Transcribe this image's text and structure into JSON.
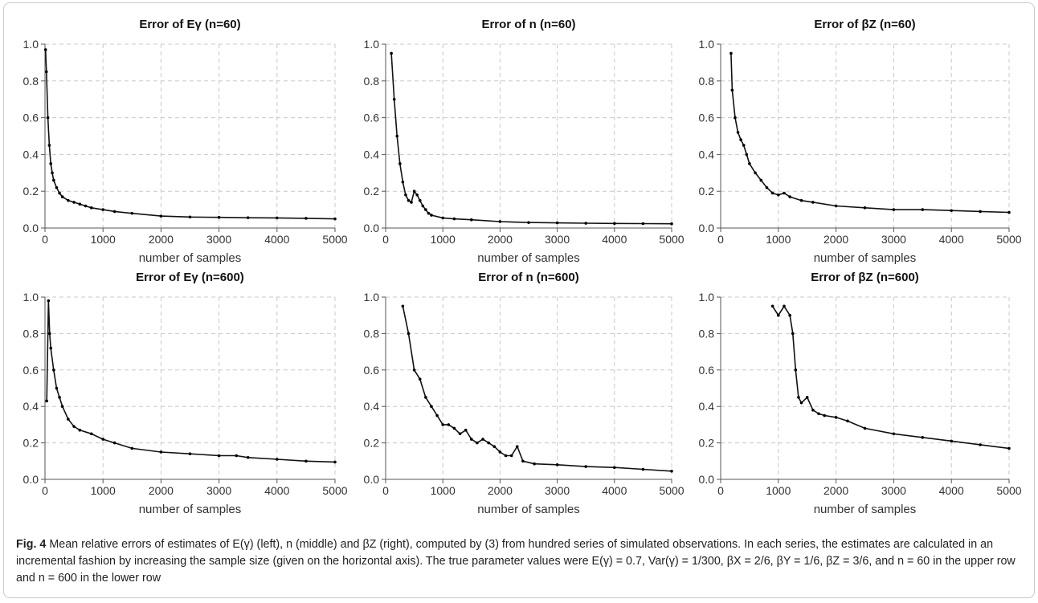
{
  "figure_label": "Fig. 4",
  "caption": "Mean relative errors of estimates of E(γ) (left), n (middle) and βZ (right), computed by (3) from hundred series of simulated observations. In each series, the estimates are calculated in an incremental fashion by increasing the sample size (given on the horizontal axis). The true parameter values were E(γ) = 0.7, Var(γ) = 1/300, βX = 2/6, βY = 1/6, βZ = 3/6, and n = 60 in the upper row and n = 600 in the lower row",
  "chart_data": [
    {
      "type": "scatter",
      "title": "Error of Eγ (n=60)",
      "xlabel": "number of samples",
      "ylabel": "",
      "xlim": [
        0,
        5000
      ],
      "ylim": [
        0,
        1
      ],
      "xticks": [
        "0",
        "1000",
        "2000",
        "3000",
        "4000",
        "5000"
      ],
      "yticks": [
        "0.0",
        "0.2",
        "0.4",
        "0.6",
        "0.8",
        "1.0"
      ],
      "grid": true,
      "x": [
        10,
        25,
        50,
        75,
        100,
        125,
        150,
        200,
        250,
        300,
        400,
        500,
        600,
        700,
        800,
        1000,
        1200,
        1500,
        2000,
        2500,
        3000,
        3500,
        4000,
        4500,
        5000
      ],
      "y": [
        0.97,
        0.85,
        0.6,
        0.45,
        0.35,
        0.3,
        0.26,
        0.22,
        0.19,
        0.17,
        0.15,
        0.14,
        0.13,
        0.12,
        0.11,
        0.1,
        0.09,
        0.08,
        0.065,
        0.06,
        0.058,
        0.056,
        0.055,
        0.053,
        0.05
      ]
    },
    {
      "type": "scatter",
      "title": "Error of n (n=60)",
      "xlabel": "number of samples",
      "ylabel": "",
      "xlim": [
        0,
        5000
      ],
      "ylim": [
        0,
        1
      ],
      "xticks": [
        "0",
        "1000",
        "2000",
        "3000",
        "4000",
        "5000"
      ],
      "yticks": [
        "0.0",
        "0.2",
        "0.4",
        "0.6",
        "0.8",
        "1.0"
      ],
      "grid": true,
      "x": [
        100,
        150,
        200,
        250,
        300,
        350,
        400,
        450,
        500,
        550,
        600,
        650,
        700,
        750,
        800,
        1000,
        1200,
        1500,
        2000,
        2500,
        3000,
        3500,
        4000,
        4500,
        5000
      ],
      "y": [
        0.95,
        0.7,
        0.5,
        0.35,
        0.25,
        0.18,
        0.15,
        0.14,
        0.2,
        0.18,
        0.15,
        0.12,
        0.1,
        0.08,
        0.07,
        0.055,
        0.05,
        0.045,
        0.035,
        0.03,
        0.028,
        0.026,
        0.025,
        0.024,
        0.023
      ]
    },
    {
      "type": "scatter",
      "title": "Error of βZ (n=60)",
      "xlabel": "number of samples",
      "ylabel": "",
      "xlim": [
        0,
        5000
      ],
      "ylim": [
        0,
        1
      ],
      "xticks": [
        "0",
        "1000",
        "2000",
        "3000",
        "4000",
        "5000"
      ],
      "yticks": [
        "0.0",
        "0.2",
        "0.4",
        "0.6",
        "0.8",
        "1.0"
      ],
      "grid": true,
      "x": [
        180,
        200,
        250,
        300,
        350,
        400,
        450,
        500,
        600,
        700,
        800,
        900,
        1000,
        1100,
        1200,
        1400,
        1600,
        2000,
        2500,
        3000,
        3500,
        4000,
        4500,
        5000
      ],
      "y": [
        0.95,
        0.75,
        0.6,
        0.52,
        0.48,
        0.45,
        0.4,
        0.35,
        0.3,
        0.26,
        0.22,
        0.19,
        0.18,
        0.19,
        0.17,
        0.15,
        0.14,
        0.12,
        0.11,
        0.1,
        0.1,
        0.095,
        0.09,
        0.085
      ]
    },
    {
      "type": "scatter",
      "title": "Error of Eγ (n=600)",
      "xlabel": "number of samples",
      "ylabel": "",
      "xlim": [
        0,
        5000
      ],
      "ylim": [
        0,
        1
      ],
      "xticks": [
        "0",
        "1000",
        "2000",
        "3000",
        "4000",
        "5000"
      ],
      "yticks": [
        "0.0",
        "0.2",
        "0.4",
        "0.6",
        "0.8",
        "1.0"
      ],
      "grid": true,
      "x": [
        30,
        60,
        80,
        100,
        150,
        200,
        250,
        300,
        400,
        500,
        600,
        800,
        1000,
        1200,
        1500,
        2000,
        2500,
        3000,
        3300,
        3500,
        4000,
        4500,
        5000
      ],
      "y": [
        0.43,
        0.98,
        0.8,
        0.72,
        0.6,
        0.5,
        0.45,
        0.4,
        0.33,
        0.29,
        0.27,
        0.25,
        0.22,
        0.2,
        0.17,
        0.15,
        0.14,
        0.13,
        0.13,
        0.12,
        0.11,
        0.1,
        0.095
      ]
    },
    {
      "type": "scatter",
      "title": "Error of n (n=600)",
      "xlabel": "number of samples",
      "ylabel": "",
      "xlim": [
        0,
        5000
      ],
      "ylim": [
        0,
        1
      ],
      "xticks": [
        "0",
        "1000",
        "2000",
        "3000",
        "4000",
        "5000"
      ],
      "yticks": [
        "0.0",
        "0.2",
        "0.4",
        "0.6",
        "0.8",
        "1.0"
      ],
      "grid": true,
      "x": [
        300,
        400,
        500,
        600,
        700,
        800,
        900,
        1000,
        1100,
        1200,
        1300,
        1400,
        1500,
        1600,
        1700,
        1800,
        1900,
        2000,
        2100,
        2200,
        2300,
        2400,
        2600,
        3000,
        3500,
        4000,
        4500,
        5000
      ],
      "y": [
        0.95,
        0.8,
        0.6,
        0.55,
        0.45,
        0.4,
        0.35,
        0.3,
        0.3,
        0.28,
        0.25,
        0.27,
        0.22,
        0.2,
        0.22,
        0.2,
        0.18,
        0.15,
        0.13,
        0.13,
        0.18,
        0.1,
        0.085,
        0.08,
        0.07,
        0.065,
        0.055,
        0.045
      ]
    },
    {
      "type": "scatter",
      "title": "Error of βZ (n=600)",
      "xlabel": "number of samples",
      "ylabel": "",
      "xlim": [
        0,
        5000
      ],
      "ylim": [
        0,
        1
      ],
      "xticks": [
        "0",
        "1000",
        "2000",
        "3000",
        "4000",
        "5000"
      ],
      "yticks": [
        "0.0",
        "0.2",
        "0.4",
        "0.6",
        "0.8",
        "1.0"
      ],
      "grid": true,
      "x": [
        900,
        1000,
        1100,
        1200,
        1250,
        1300,
        1350,
        1400,
        1500,
        1600,
        1700,
        1800,
        2000,
        2200,
        2500,
        3000,
        3500,
        4000,
        4500,
        5000
      ],
      "y": [
        0.95,
        0.9,
        0.95,
        0.9,
        0.8,
        0.6,
        0.45,
        0.42,
        0.45,
        0.38,
        0.36,
        0.35,
        0.34,
        0.32,
        0.28,
        0.25,
        0.23,
        0.21,
        0.19,
        0.17
      ]
    }
  ]
}
